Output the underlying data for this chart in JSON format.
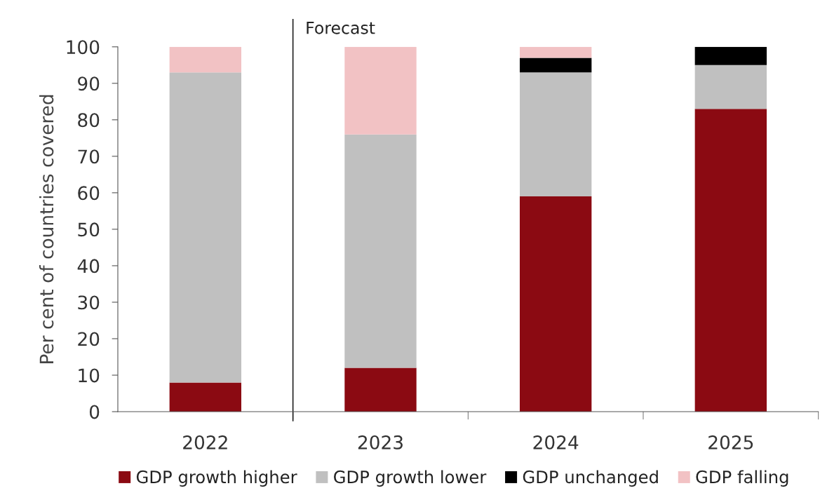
{
  "chart_data": {
    "type": "bar",
    "stacked": true,
    "ylabel": "Per cent of countries covered",
    "categories": [
      "2022",
      "2023",
      "2024",
      "2025"
    ],
    "series": [
      {
        "name": "GDP growth higher",
        "color": "#8b0a12",
        "values": [
          8,
          12,
          59,
          83
        ]
      },
      {
        "name": "GDP growth lower",
        "color": "#c0c0c0",
        "values": [
          85,
          64,
          34,
          12
        ]
      },
      {
        "name": "GDP unchanged",
        "color": "#000000",
        "values": [
          0,
          0,
          4,
          5
        ]
      },
      {
        "name": "GDP falling",
        "color": "#f2c2c4",
        "values": [
          7,
          24,
          3,
          0
        ]
      }
    ],
    "ylim": [
      0,
      100
    ],
    "yticks": [
      0,
      10,
      20,
      30,
      40,
      50,
      60,
      70,
      80,
      90,
      100
    ],
    "annotations": [
      "Forecast"
    ],
    "grid": false,
    "legend": "bottom"
  }
}
